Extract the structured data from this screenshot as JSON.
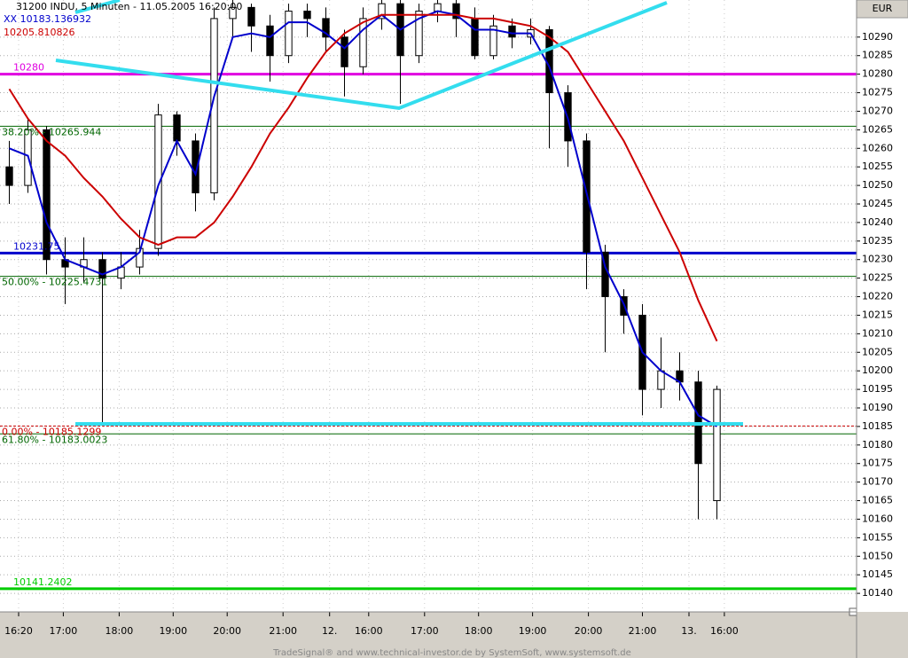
{
  "chart_data": {
    "type": "candlestick",
    "title": "31200  INDU, 5 Minuten - 11.05.2005 16:20:00",
    "currency": "EUR",
    "footer": "TradeSignal® and www.technical-investor.de by SystemSoft, www.systemsoft.de",
    "xlim": [
      0,
      46
    ],
    "xticks": [
      {
        "value": 1,
        "label": "16:20"
      },
      {
        "value": 3.4,
        "label": "17:00"
      },
      {
        "value": 6.4,
        "label": "18:00"
      },
      {
        "value": 9.3,
        "label": "19:00"
      },
      {
        "value": 12.2,
        "label": "20:00"
      },
      {
        "value": 15.2,
        "label": "21:00"
      },
      {
        "value": 17.7,
        "label": "12."
      },
      {
        "value": 19.8,
        "label": "16:00"
      },
      {
        "value": 22.8,
        "label": "17:00"
      },
      {
        "value": 25.7,
        "label": "18:00"
      },
      {
        "value": 28.6,
        "label": "19:00"
      },
      {
        "value": 31.6,
        "label": "20:00"
      },
      {
        "value": 34.5,
        "label": "21:00"
      },
      {
        "value": 37,
        "label": "13."
      },
      {
        "value": 38.9,
        "label": "16:00"
      }
    ],
    "ylim": [
      10135,
      10300
    ],
    "yticks": [
      10140,
      10145,
      10150,
      10155,
      10160,
      10165,
      10170,
      10175,
      10180,
      10185,
      10190,
      10195,
      10200,
      10205,
      10210,
      10215,
      10220,
      10225,
      10230,
      10235,
      10240,
      10245,
      10250,
      10255,
      10260,
      10265,
      10270,
      10275,
      10280,
      10285,
      10290
    ],
    "grid": true,
    "candles": {
      "open": [
        10255,
        10250,
        10265,
        10230,
        10228,
        10230,
        10225,
        10228,
        10233,
        10269,
        10262,
        10248,
        10295,
        10298,
        10293,
        10285,
        10297,
        10295,
        10290,
        10282,
        10295,
        10299,
        10285,
        10297,
        10299,
        10295,
        10285,
        10293,
        10290,
        10292,
        10275,
        10262,
        10232,
        10220,
        10215,
        10195,
        10200,
        10197,
        10165
      ],
      "high": [
        10262,
        10268,
        10266,
        10236,
        10236,
        10232,
        10232,
        10238,
        10272,
        10270,
        10264,
        10298,
        10300,
        10299,
        10296,
        10299,
        10299,
        10298,
        10292,
        10298,
        10300,
        10300,
        10299,
        10300,
        10300,
        10298,
        10296,
        10295,
        10295,
        10293,
        10277,
        10264,
        10234,
        10222,
        10218,
        10209,
        10205,
        10200,
        10196
      ],
      "low": [
        10245,
        10248,
        10226,
        10218,
        10224,
        10186,
        10222,
        10226,
        10231,
        10258,
        10243,
        10246,
        10290,
        10286,
        10278,
        10283,
        10290,
        10286,
        10274,
        10280,
        10292,
        10272,
        10283,
        10294,
        10290,
        10284,
        10284,
        10287,
        10288,
        10260,
        10255,
        10222,
        10205,
        10210,
        10188,
        10190,
        10192,
        10160,
        10160
      ],
      "close": [
        10250,
        10265,
        10230,
        10228,
        10230,
        10225,
        10228,
        10233,
        10269,
        10262,
        10248,
        10295,
        10298,
        10293,
        10285,
        10297,
        10295,
        10290,
        10282,
        10295,
        10299,
        10285,
        10297,
        10299,
        10295,
        10285,
        10293,
        10290,
        10292,
        10275,
        10262,
        10232,
        10220,
        10215,
        10195,
        10200,
        10197,
        10175,
        10195
      ]
    },
    "series": [
      {
        "name": "XX 10183.136932",
        "color": "#0000cc",
        "values": [
          10260,
          10258,
          10240,
          10230,
          10228,
          10226,
          10228,
          10232,
          10250,
          10262,
          10253,
          10274,
          10290,
          10291,
          10290,
          10294,
          10294,
          10291,
          10287,
          10292,
          10296,
          10292,
          10295,
          10297,
          10296,
          10292,
          10292,
          10291,
          10291,
          10282,
          10268,
          10248,
          10228,
          10218,
          10205,
          10200,
          10197,
          10188,
          10185
        ]
      },
      {
        "name": "10205.810826",
        "color": "#cc0000",
        "values": [
          10276,
          10268,
          10262,
          10258,
          10252,
          10247,
          10241,
          10236,
          10234,
          10236,
          10236,
          10240,
          10247,
          10255,
          10264,
          10271,
          10279,
          10286,
          10291,
          10294,
          10296,
          10296,
          10296,
          10296,
          10296,
          10295,
          10295,
          10294,
          10293,
          10290,
          10286,
          10278,
          10270,
          10262,
          10252,
          10242,
          10232,
          10219,
          10208
        ]
      }
    ],
    "levels": [
      {
        "label": "10280",
        "value": 10280,
        "color": "#e000e0",
        "line": "thick"
      },
      {
        "label": "38.20% - 10265.944",
        "value": 10265.944,
        "color": "#006600",
        "line": "thin"
      },
      {
        "label": "10231.75",
        "value": 10231.75,
        "color": "#0000cc",
        "line": "thick"
      },
      {
        "label": "50.00% - 10225.4731",
        "value": 10225.4731,
        "color": "#006600",
        "line": "thin"
      },
      {
        "label": "0.00% - 10185.1299",
        "value": 10185.1299,
        "color": "#cc0000",
        "line": "dashed"
      },
      {
        "label": "61.80% - 10183.0023",
        "value": 10183.0023,
        "color": "#006600",
        "line": "thin"
      },
      {
        "label": "10141.2402",
        "value": 10141.2402,
        "color": "#00cc00",
        "line": "thick"
      }
    ]
  }
}
